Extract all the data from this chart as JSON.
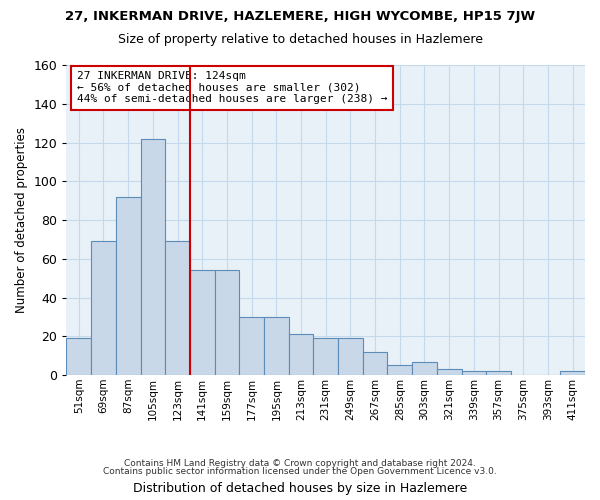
{
  "title": "27, INKERMAN DRIVE, HAZLEMERE, HIGH WYCOMBE, HP15 7JW",
  "subtitle": "Size of property relative to detached houses in Hazlemere",
  "xlabel": "Distribution of detached houses by size in Hazlemere",
  "ylabel": "Number of detached properties",
  "bar_color": "#c8d8e8",
  "bar_edge_color": "#5b8db8",
  "grid_color": "#c5d9ec",
  "background_color": "#e8f0f8",
  "categories": [
    "51sqm",
    "69sqm",
    "87sqm",
    "105sqm",
    "123sqm",
    "141sqm",
    "159sqm",
    "177sqm",
    "195sqm",
    "213sqm",
    "231sqm",
    "249sqm",
    "267sqm",
    "285sqm",
    "303sqm",
    "321sqm",
    "339sqm",
    "357sqm",
    "375sqm",
    "393sqm",
    "411sqm"
  ],
  "values": [
    19,
    69,
    92,
    122,
    69,
    54,
    54,
    30,
    30,
    21,
    19,
    19,
    12,
    5,
    7,
    3,
    2,
    2,
    0,
    0,
    2
  ],
  "ylim": [
    0,
    160
  ],
  "yticks": [
    0,
    20,
    40,
    60,
    80,
    100,
    120,
    140,
    160
  ],
  "vline_x_index": 4,
  "vline_color": "#cc0000",
  "annotation_text": "27 INKERMAN DRIVE: 124sqm\n← 56% of detached houses are smaller (302)\n44% of semi-detached houses are larger (238) →",
  "annotation_box_color": "#ffffff",
  "annotation_box_edge": "#cc0000",
  "footer1": "Contains HM Land Registry data © Crown copyright and database right 2024.",
  "footer2": "Contains public sector information licensed under the Open Government Licence v3.0."
}
